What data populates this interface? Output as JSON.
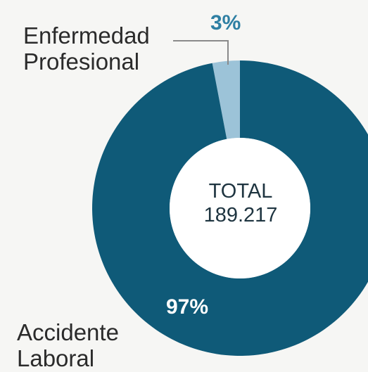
{
  "chart_data": {
    "type": "pie",
    "donut": true,
    "categories": [
      "Enfermedad Profesional",
      "Accidente Laboral"
    ],
    "values": [
      3,
      97
    ],
    "labels": {
      "enfermedad": [
        "Enfermedad",
        "Profesional"
      ],
      "accidente": [
        "Accidente",
        "Laboral"
      ]
    },
    "percent_labels": [
      "3%",
      "97%"
    ],
    "center_title": "TOTAL",
    "center_value": "189.217",
    "colors": [
      "#9cc3d8",
      "#0f5a78"
    ]
  }
}
